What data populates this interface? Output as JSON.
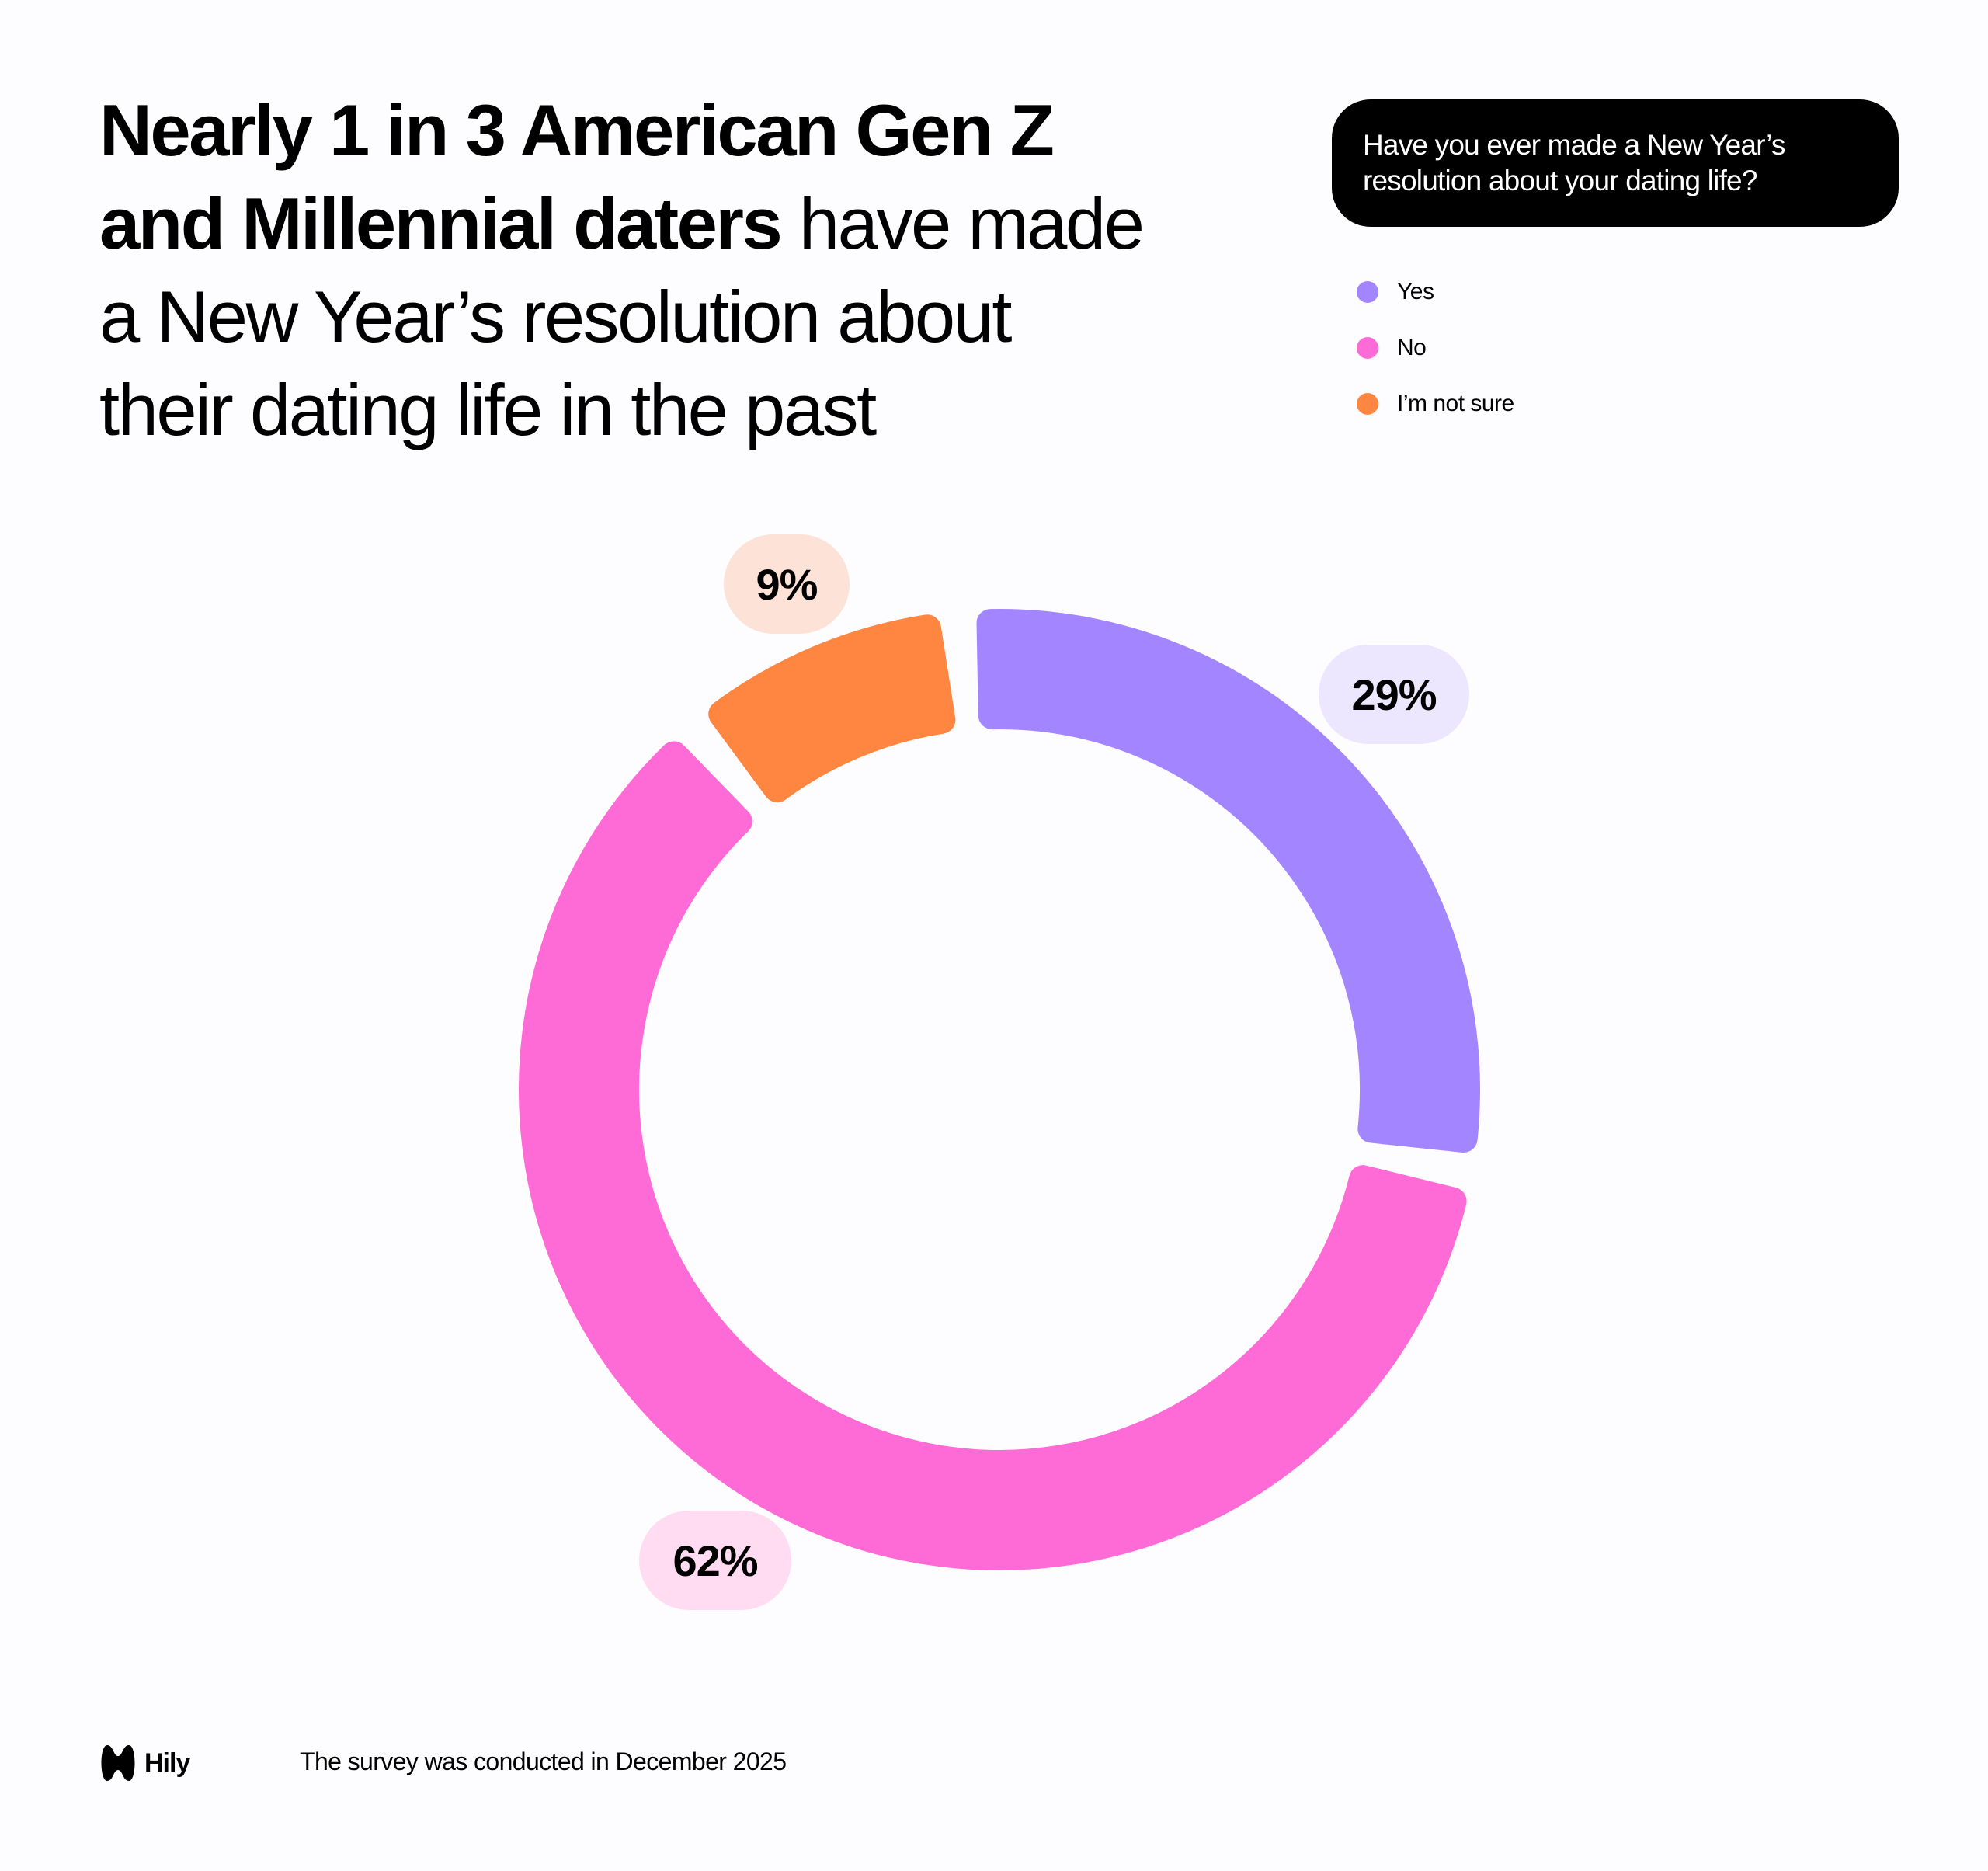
{
  "title": {
    "line1_bold": "Nearly 1 in 3 American Gen Z",
    "line2_bold": "and Millennial daters",
    "line2_regular": " have made",
    "line3": "a New Year’s resolution about",
    "line4": "their dating life in the past"
  },
  "question": "Have you ever made a New Year’s resolution about your dating life?",
  "legend": [
    {
      "label": "Yes",
      "color": "#a385ff"
    },
    {
      "label": "No",
      "color": "#ff6bd6"
    },
    {
      "label": "I’m not sure",
      "color": "#ff8640"
    }
  ],
  "chart_data": {
    "type": "pie",
    "variant": "donut",
    "title": "Have you ever made a New Year’s resolution about your dating life?",
    "categories": [
      "Yes",
      "No",
      "I’m not sure"
    ],
    "values": [
      29,
      62,
      9
    ],
    "labels": [
      "29%",
      "62%",
      "9%"
    ],
    "colors": [
      "#a385ff",
      "#ff6bd6",
      "#ff8640"
    ],
    "legend_position": "top-right"
  },
  "footer": {
    "brand": "Hily",
    "note": "The survey was conducted in December 2025"
  }
}
